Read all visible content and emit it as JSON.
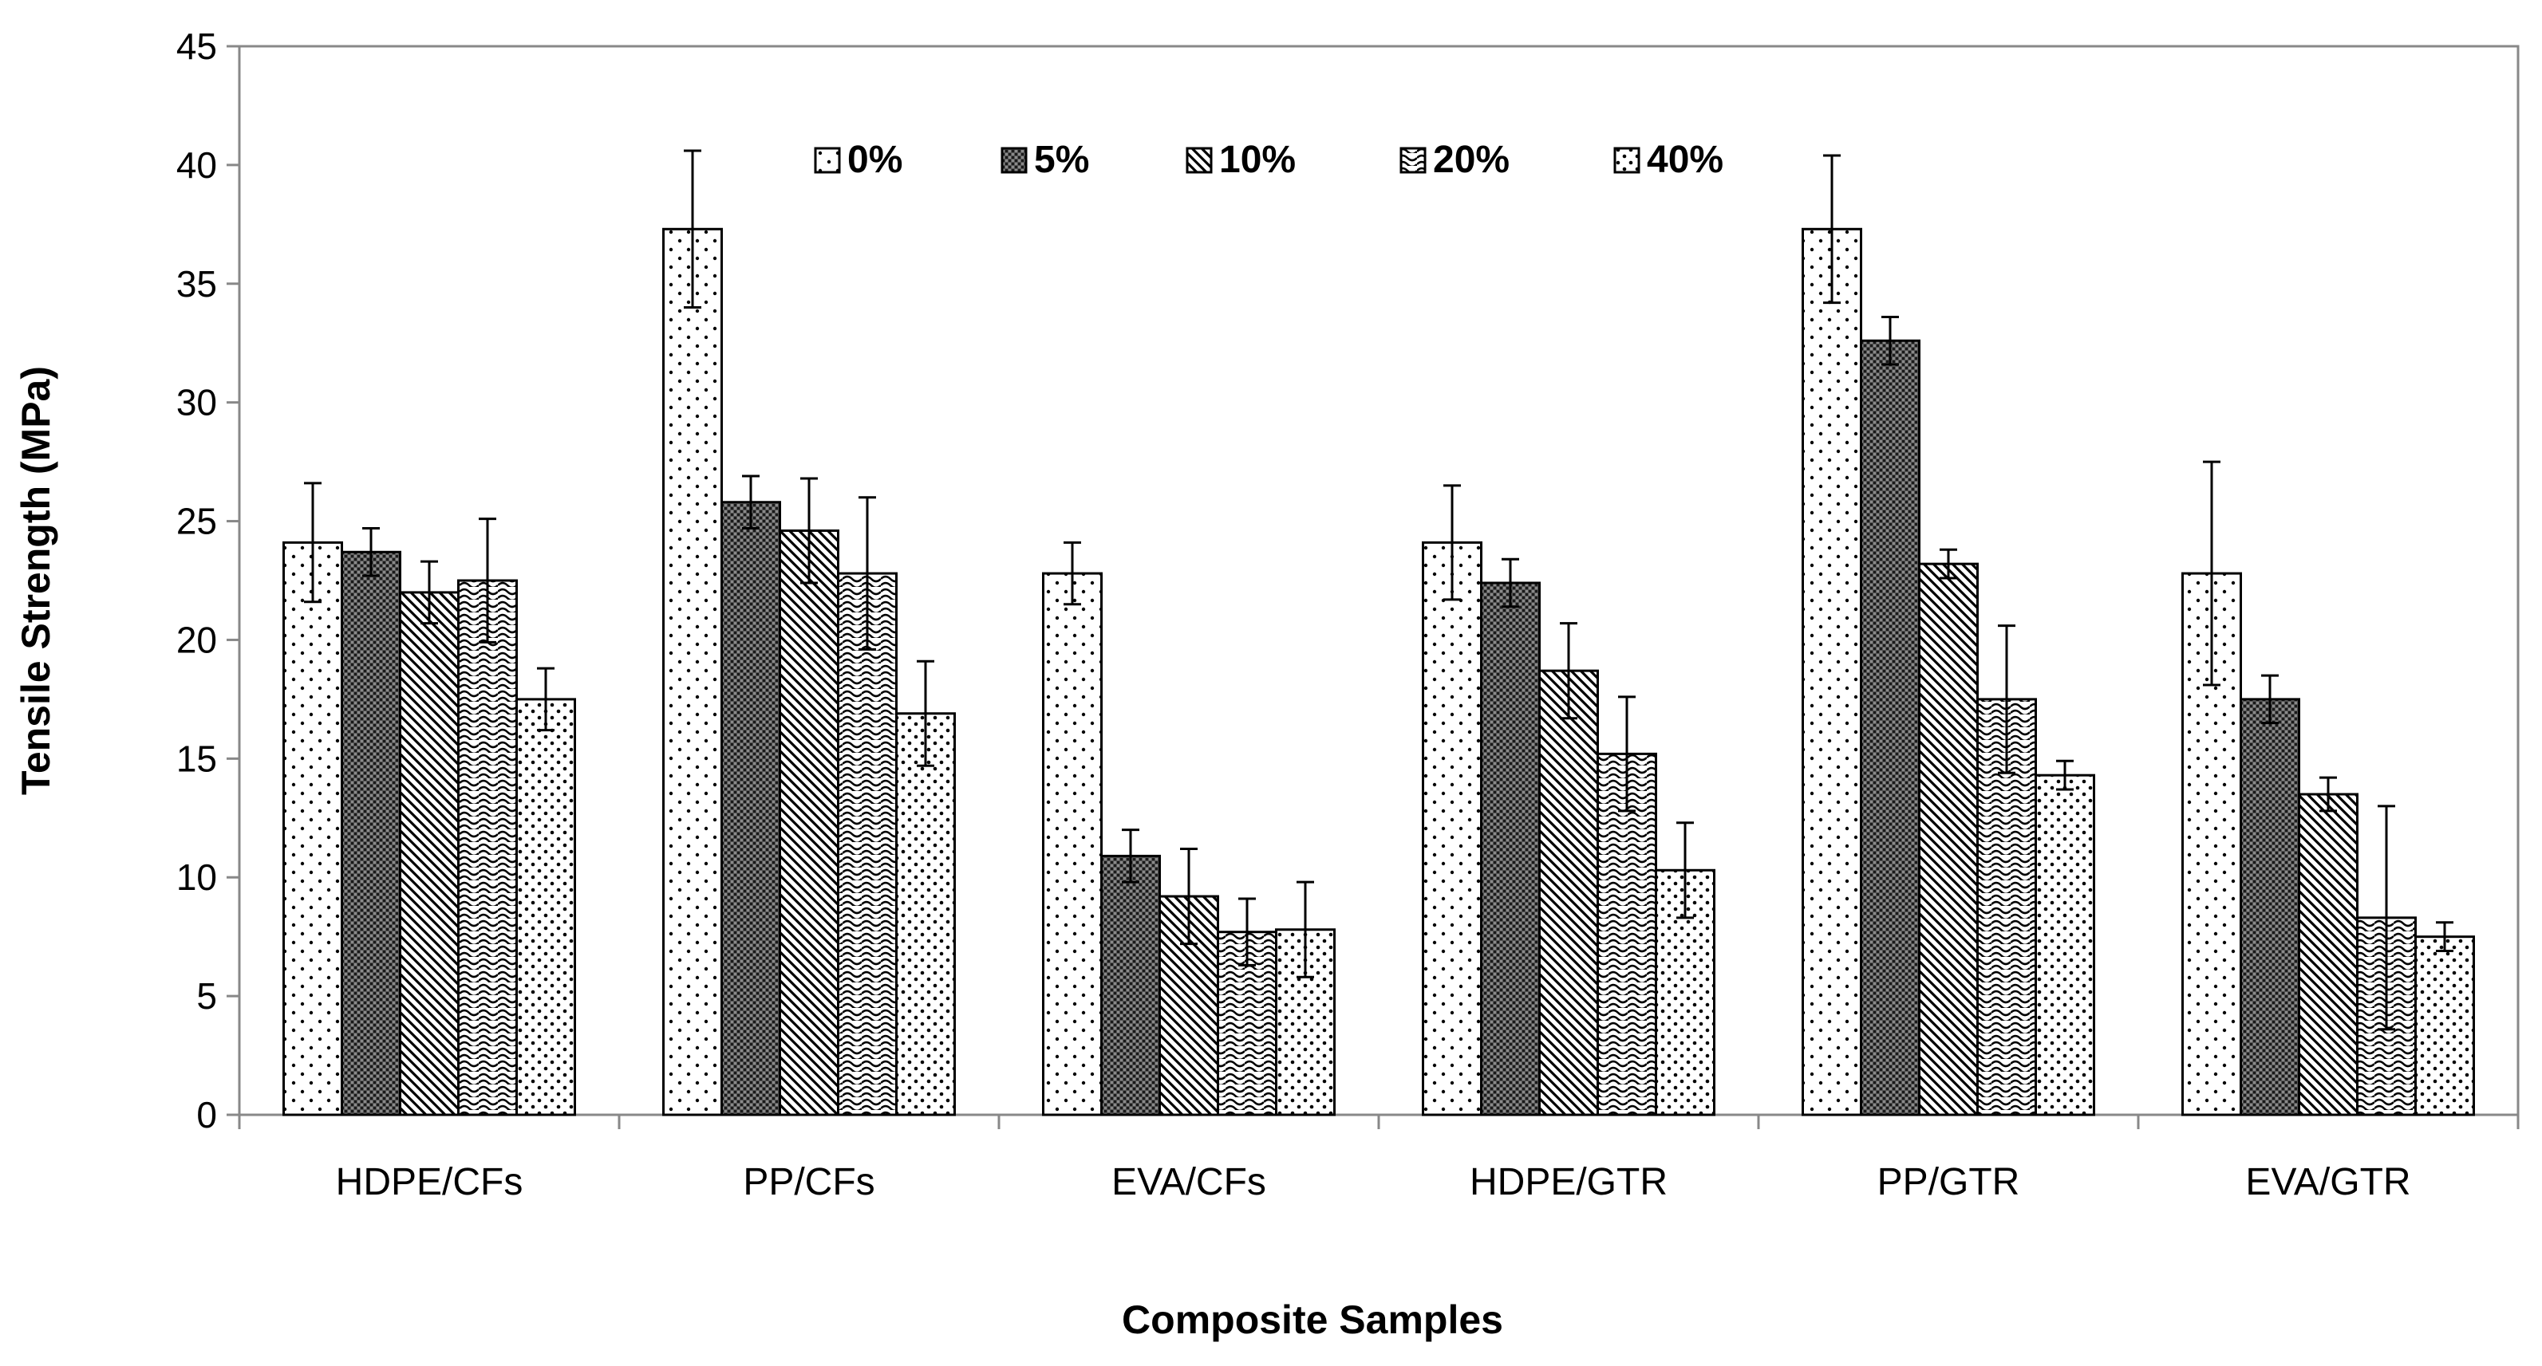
{
  "chart_data": {
    "type": "bar",
    "title": "",
    "xlabel": "Composite Samples",
    "ylabel": "Tensile Strength (MPa)",
    "ylim": [
      0,
      45
    ],
    "yticks": [
      0,
      5,
      10,
      15,
      20,
      25,
      30,
      35,
      40,
      45
    ],
    "ytick_labels": [
      "0",
      "5",
      "10",
      "15",
      "20",
      "25",
      "30",
      "35",
      "40",
      "45"
    ],
    "grid": false,
    "legend_position": "top-center",
    "categories": [
      "HDPE/CFs",
      "PP/CFs",
      "EVA/CFs",
      "HDPE/GTR",
      "PP/GTR",
      "EVA/GTR"
    ],
    "series": [
      {
        "name": "0%",
        "pattern": "dots-sparse",
        "values": [
          24.1,
          37.3,
          22.8,
          24.1,
          37.3,
          22.8
        ],
        "errors": [
          2.5,
          3.3,
          1.3,
          2.4,
          3.1,
          4.7
        ]
      },
      {
        "name": "5%",
        "pattern": "crosshatch-dense",
        "values": [
          23.7,
          25.8,
          10.9,
          22.4,
          32.6,
          17.5
        ],
        "errors": [
          1.0,
          1.1,
          1.1,
          1.0,
          1.0,
          1.0
        ]
      },
      {
        "name": "10%",
        "pattern": "diagonal-lines",
        "values": [
          22.0,
          24.6,
          9.2,
          18.7,
          23.2,
          13.5
        ],
        "errors": [
          1.3,
          2.2,
          2.0,
          2.0,
          0.6,
          0.7
        ]
      },
      {
        "name": "20%",
        "pattern": "waves",
        "values": [
          22.5,
          22.8,
          7.7,
          15.2,
          17.5,
          8.3
        ],
        "errors": [
          2.6,
          3.2,
          1.4,
          2.4,
          3.1,
          4.7
        ]
      },
      {
        "name": "40%",
        "pattern": "dots-dense",
        "values": [
          17.5,
          16.9,
          7.8,
          10.3,
          14.3,
          7.5
        ],
        "errors": [
          1.3,
          2.2,
          2.0,
          2.0,
          0.6,
          0.6
        ]
      }
    ],
    "colors": {
      "stroke": "#000000",
      "fill": "#ffffff",
      "axis": "#888888",
      "frame": "#888888"
    }
  }
}
